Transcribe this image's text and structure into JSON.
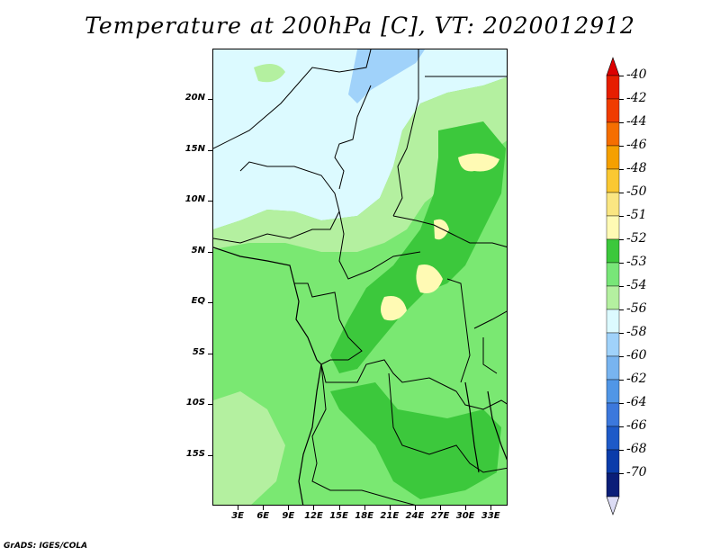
{
  "title": "Temperature at 200hPa [C], VT: 2020012912",
  "credit": "GrADS: IGES/COLA",
  "lat_labels": [
    {
      "text": "20N",
      "lat": 20
    },
    {
      "text": "15N",
      "lat": 15
    },
    {
      "text": "10N",
      "lat": 10
    },
    {
      "text": "5N",
      "lat": 5
    },
    {
      "text": "EQ",
      "lat": 0
    },
    {
      "text": "5S",
      "lat": -5
    },
    {
      "text": "10S",
      "lat": -10
    },
    {
      "text": "15S",
      "lat": -15
    }
  ],
  "lon_labels": [
    {
      "text": "3E",
      "lon": 3
    },
    {
      "text": "6E",
      "lon": 6
    },
    {
      "text": "9E",
      "lon": 9
    },
    {
      "text": "12E",
      "lon": 12
    },
    {
      "text": "15E",
      "lon": 15
    },
    {
      "text": "18E",
      "lon": 18
    },
    {
      "text": "21E",
      "lon": 21
    },
    {
      "text": "24E",
      "lon": 24
    },
    {
      "text": "27E",
      "lon": 27
    },
    {
      "text": "30E",
      "lon": 30
    },
    {
      "text": "33E",
      "lon": 33
    }
  ],
  "extent": {
    "lon_min": 0,
    "lon_max": 35,
    "lat_min": -20,
    "lat_max": 25
  },
  "colorbar": [
    {
      "label": "-40",
      "color": "#e61e00"
    },
    {
      "label": "-42",
      "color": "#f03c00"
    },
    {
      "label": "-44",
      "color": "#f56e00"
    },
    {
      "label": "-46",
      "color": "#f5a000"
    },
    {
      "label": "-48",
      "color": "#fac832"
    },
    {
      "label": "-50",
      "color": "#fae682"
    },
    {
      "label": "-51",
      "color": "#fffab4"
    },
    {
      "label": "-52",
      "color": "#3cc83c"
    },
    {
      "label": "-53",
      "color": "#78e678"
    },
    {
      "label": "-54",
      "color": "#b4f0a0"
    },
    {
      "label": "-56",
      "color": "#dcfaff"
    },
    {
      "label": "-58",
      "color": "#a0d2fa"
    },
    {
      "label": "-60",
      "color": "#78b4f0"
    },
    {
      "label": "-62",
      "color": "#5096e6"
    },
    {
      "label": "-64",
      "color": "#3c78dc"
    },
    {
      "label": "-66",
      "color": "#1e5ac8"
    },
    {
      "label": "-68",
      "color": "#0a3caa"
    },
    {
      "label": "-70",
      "color": "#0a1e78"
    }
  ],
  "colorbar_top_color": "#dc0000",
  "colorbar_bottom_color": "#dcdcf5"
}
